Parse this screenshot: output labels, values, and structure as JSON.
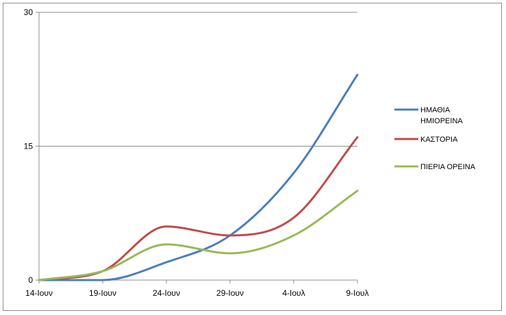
{
  "chart_data": {
    "type": "line",
    "title": "",
    "xlabel": "",
    "ylabel": "",
    "categories": [
      "14-Ιουν",
      "19-Ιουν",
      "24-Ιουν",
      "29-Ιουν",
      "4-Ιουλ",
      "9-Ιουλ"
    ],
    "ylim": [
      0,
      30
    ],
    "yticks": [
      0,
      15,
      30
    ],
    "grid": true,
    "legend_position": "right",
    "series": [
      {
        "name_lines": [
          "ΗΜΑΘΙΑ",
          "ΗΜΙΟΡΕΙΝΑ"
        ],
        "color": "#4a7ebb",
        "values": [
          0,
          0,
          2,
          5,
          12,
          23
        ]
      },
      {
        "name_lines": [
          "ΚΑΣΤΟΡΙΑ"
        ],
        "color": "#be4b48",
        "values": [
          0,
          1,
          6,
          5,
          7,
          16
        ]
      },
      {
        "name_lines": [
          "ΠΙΕΡΙΑ ΟΡΕΙΝΑ"
        ],
        "color": "#98b954",
        "values": [
          0,
          1,
          4,
          3,
          5,
          10
        ]
      }
    ]
  }
}
